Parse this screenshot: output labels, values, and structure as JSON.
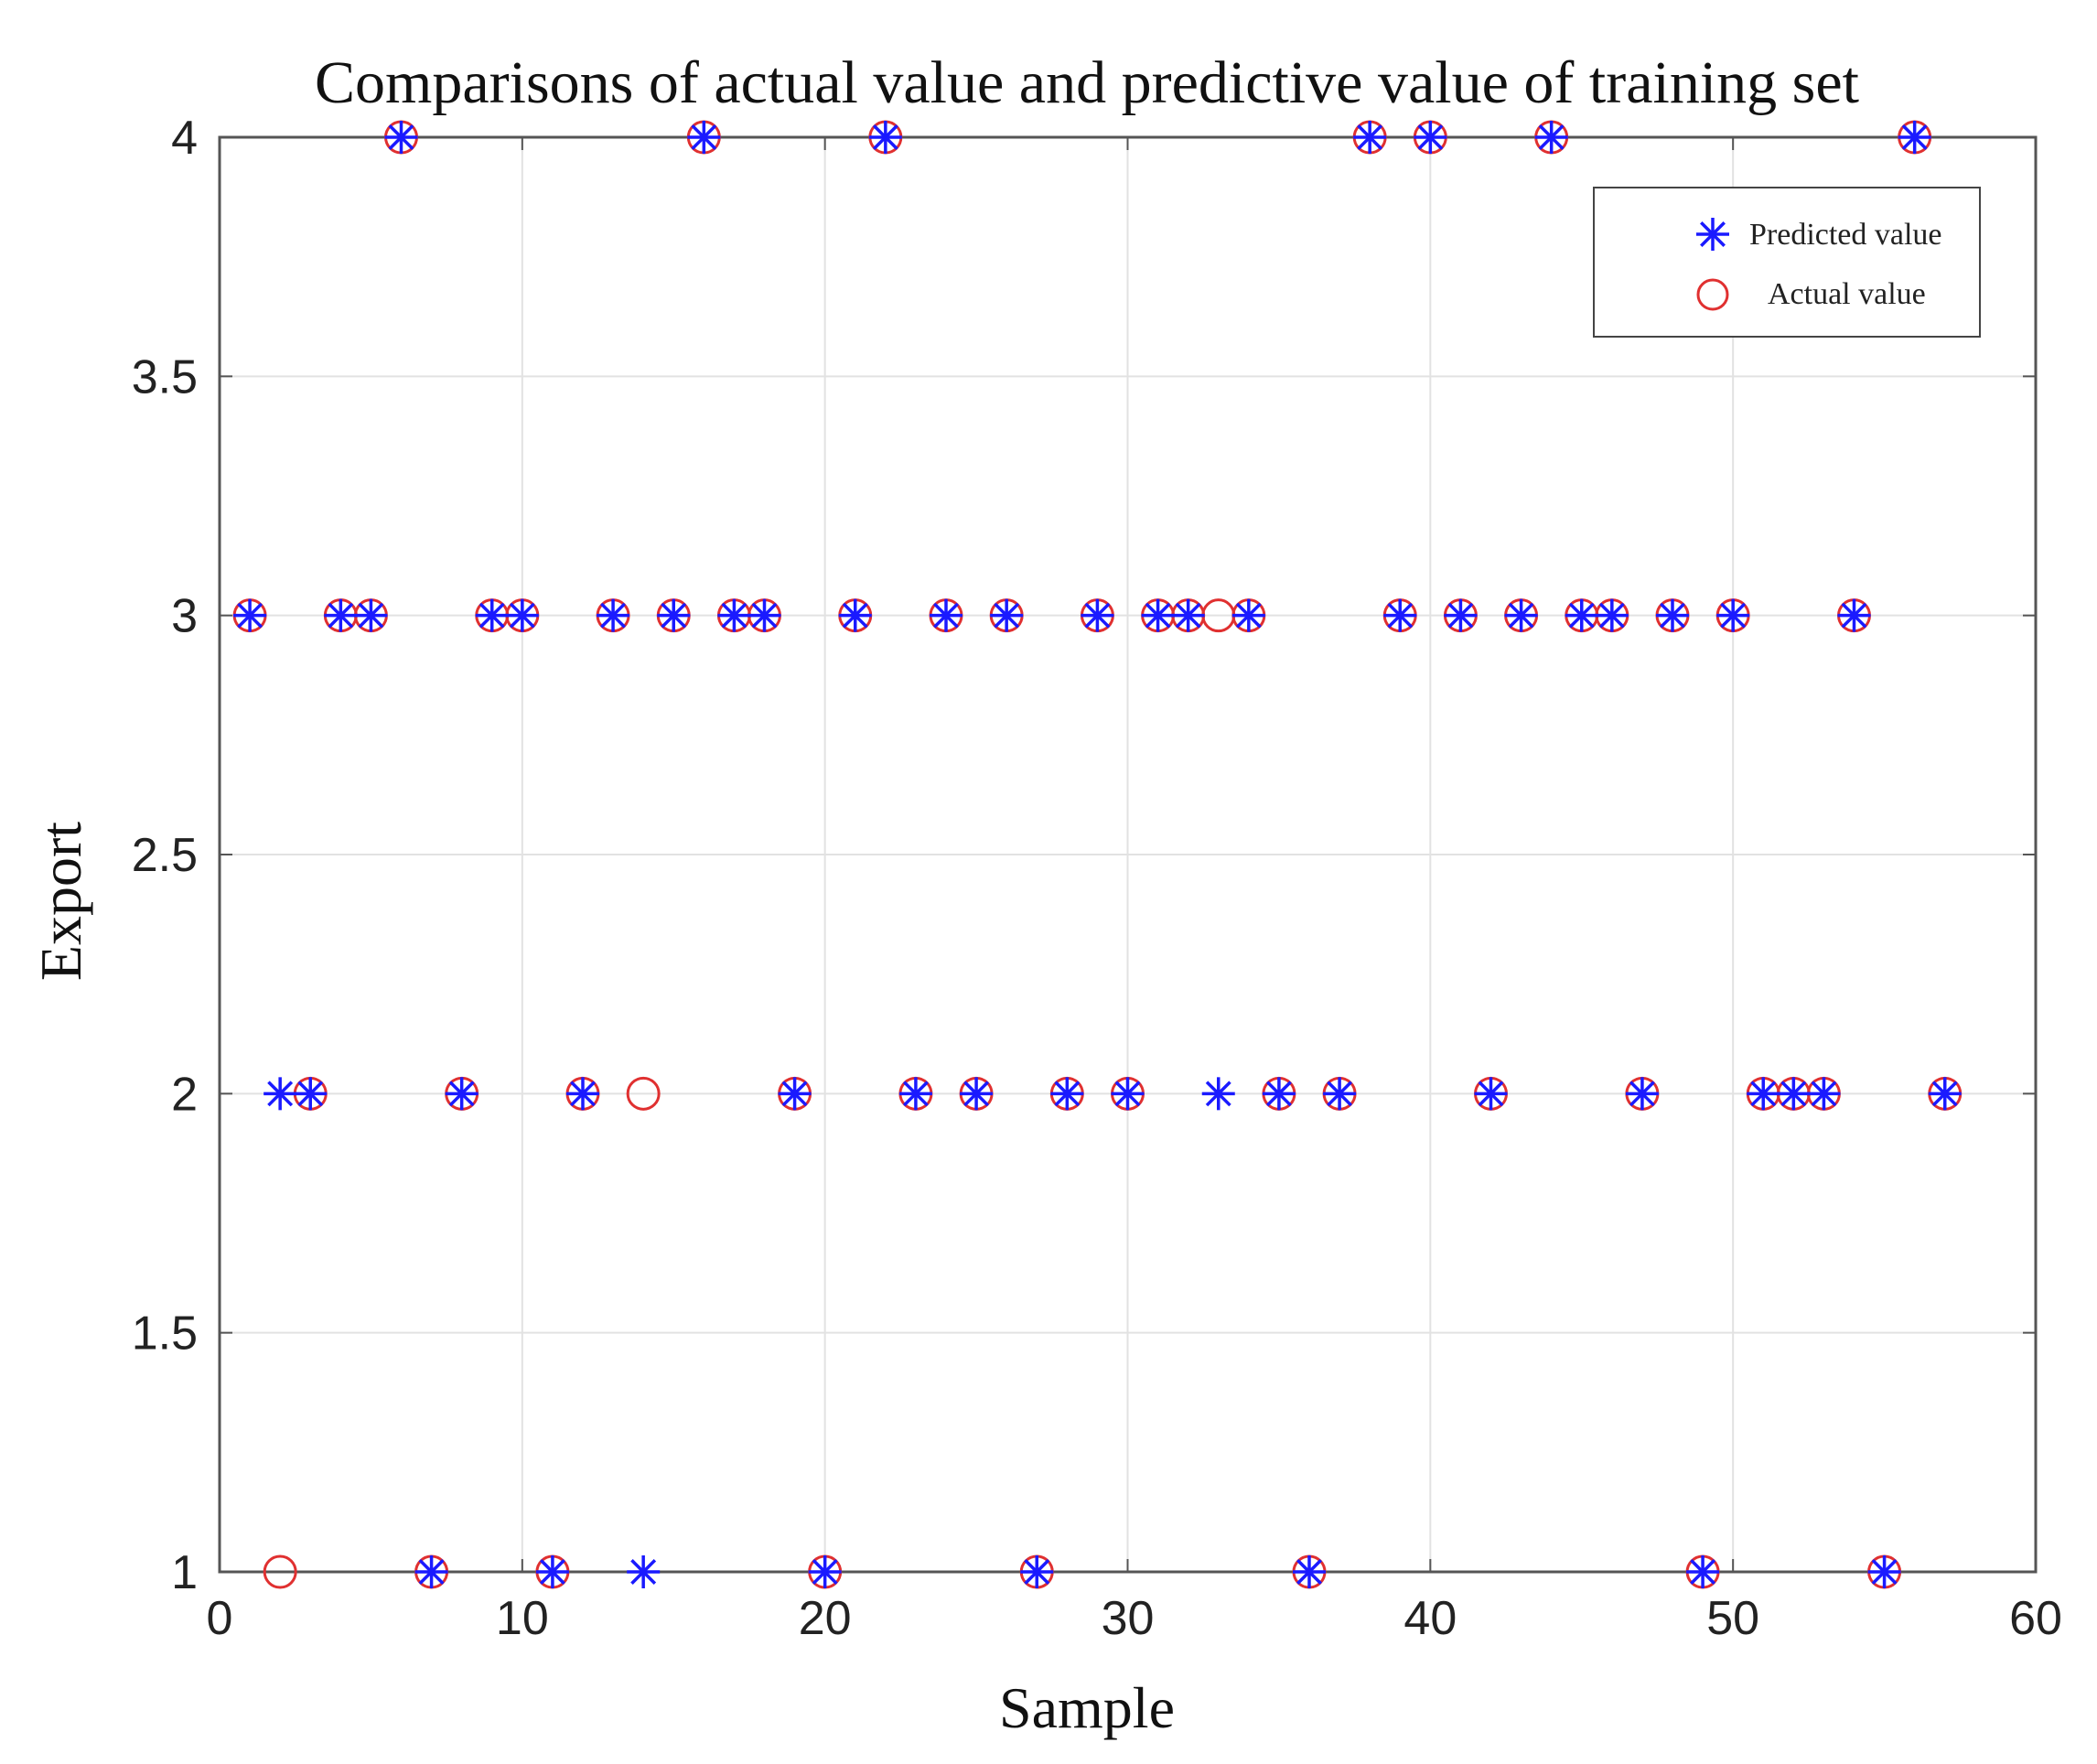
{
  "chart_data": {
    "type": "scatter",
    "title": "Comparisons of actual value and predictive value of training set",
    "xlabel": "Sample",
    "ylabel": "Export",
    "xlim": [
      0,
      60
    ],
    "ylim": [
      1,
      4
    ],
    "xticks": [
      0,
      10,
      20,
      30,
      40,
      50,
      60
    ],
    "yticks": [
      1,
      1.5,
      2,
      2.5,
      3,
      3.5,
      4
    ],
    "ytick_labels": [
      "1",
      "1.5",
      "2",
      "2.5",
      "3",
      "3.5",
      "4"
    ],
    "grid": true,
    "legend_position": "top-right",
    "x": [
      1,
      2,
      3,
      4,
      5,
      6,
      7,
      8,
      9,
      10,
      11,
      12,
      13,
      14,
      15,
      16,
      17,
      18,
      19,
      20,
      21,
      22,
      23,
      24,
      25,
      26,
      27,
      28,
      29,
      30,
      31,
      32,
      33,
      34,
      35,
      36,
      37,
      38,
      39,
      40,
      41,
      42,
      43,
      44,
      45,
      46,
      47,
      48,
      49,
      50,
      51,
      52,
      53,
      54,
      55,
      56,
      57
    ],
    "series": [
      {
        "name": "Predicted value",
        "marker": "asterisk",
        "color": "#1a1aff",
        "values": [
          3,
          2,
          2,
          3,
          3,
          4,
          1,
          2,
          3,
          3,
          1,
          2,
          3,
          1,
          3,
          4,
          3,
          3,
          2,
          1,
          3,
          4,
          2,
          3,
          2,
          3,
          1,
          2,
          3,
          2,
          3,
          3,
          2,
          3,
          2,
          1,
          2,
          4,
          3,
          4,
          3,
          2,
          3,
          4,
          3,
          3,
          2,
          3,
          1,
          3,
          2,
          2,
          2,
          3,
          1,
          4,
          2
        ]
      },
      {
        "name": "Actual value",
        "marker": "circle",
        "color": "#e03030",
        "values": [
          3,
          1,
          2,
          3,
          3,
          4,
          1,
          2,
          3,
          3,
          1,
          2,
          3,
          2,
          3,
          4,
          3,
          3,
          2,
          1,
          3,
          4,
          2,
          3,
          2,
          3,
          1,
          2,
          3,
          2,
          3,
          3,
          3,
          3,
          2,
          1,
          2,
          4,
          3,
          4,
          3,
          2,
          3,
          4,
          3,
          3,
          2,
          3,
          1,
          3,
          2,
          2,
          2,
          3,
          1,
          4,
          2
        ]
      }
    ]
  }
}
